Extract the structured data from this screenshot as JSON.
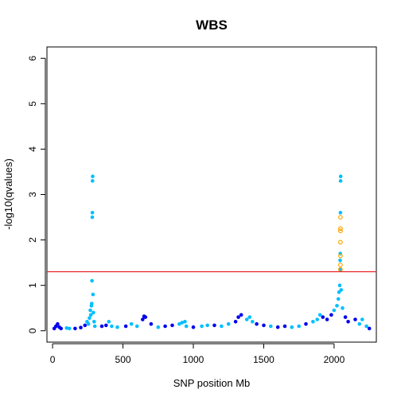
{
  "chart_data": {
    "type": "scatter",
    "title": "WBS",
    "xlabel": "SNP position Mb",
    "ylabel": "-log10(qvalues)",
    "xlim": [
      -40,
      2300
    ],
    "ylim": [
      -0.25,
      6.25
    ],
    "xticks": [
      0,
      500,
      1000,
      1500,
      2000
    ],
    "yticks": [
      0,
      1,
      2,
      3,
      4,
      5,
      6
    ],
    "grid": false,
    "threshold": {
      "y": 1.3,
      "color": "#e8222a"
    },
    "colors": {
      "dark": "#0000ee",
      "light": "#00bfff",
      "highlight": "#ffa500"
    },
    "series": [
      {
        "style": "filled-alternating",
        "points": [
          [
            12,
            0.05
          ],
          [
            24,
            0.1
          ],
          [
            36,
            0.15
          ],
          [
            48,
            0.08
          ],
          [
            60,
            0.05
          ],
          [
            100,
            0.06
          ],
          [
            120,
            0.05
          ],
          [
            160,
            0.05
          ],
          [
            200,
            0.07
          ],
          [
            230,
            0.12
          ],
          [
            245,
            0.2
          ],
          [
            255,
            0.15
          ],
          [
            262,
            0.28
          ],
          [
            268,
            0.45
          ],
          [
            272,
            0.35
          ],
          [
            276,
            0.55
          ],
          [
            278,
            0.6
          ],
          [
            280,
            1.1
          ],
          [
            282,
            2.5
          ],
          [
            283,
            2.6
          ],
          [
            284,
            3.3
          ],
          [
            285,
            3.4
          ],
          [
            287,
            0.8
          ],
          [
            290,
            0.4
          ],
          [
            295,
            0.2
          ],
          [
            300,
            0.1
          ],
          [
            350,
            0.1
          ],
          [
            380,
            0.12
          ],
          [
            400,
            0.2
          ],
          [
            420,
            0.1
          ],
          [
            460,
            0.08
          ],
          [
            520,
            0.1
          ],
          [
            560,
            0.15
          ],
          [
            600,
            0.1
          ],
          [
            640,
            0.25
          ],
          [
            650,
            0.32
          ],
          [
            660,
            0.3
          ],
          [
            700,
            0.15
          ],
          [
            750,
            0.08
          ],
          [
            800,
            0.1
          ],
          [
            850,
            0.12
          ],
          [
            900,
            0.15
          ],
          [
            920,
            0.18
          ],
          [
            940,
            0.2
          ],
          [
            950,
            0.1
          ],
          [
            1000,
            0.08
          ],
          [
            1060,
            0.1
          ],
          [
            1100,
            0.12
          ],
          [
            1150,
            0.12
          ],
          [
            1200,
            0.1
          ],
          [
            1250,
            0.15
          ],
          [
            1300,
            0.2
          ],
          [
            1320,
            0.3
          ],
          [
            1340,
            0.35
          ],
          [
            1380,
            0.25
          ],
          [
            1400,
            0.3
          ],
          [
            1420,
            0.2
          ],
          [
            1450,
            0.15
          ],
          [
            1500,
            0.12
          ],
          [
            1550,
            0.1
          ],
          [
            1600,
            0.08
          ],
          [
            1650,
            0.1
          ],
          [
            1700,
            0.08
          ],
          [
            1750,
            0.1
          ],
          [
            1800,
            0.15
          ],
          [
            1850,
            0.2
          ],
          [
            1880,
            0.25
          ],
          [
            1900,
            0.35
          ],
          [
            1920,
            0.3
          ],
          [
            1950,
            0.25
          ],
          [
            1980,
            0.35
          ],
          [
            2000,
            0.45
          ],
          [
            2020,
            0.55
          ],
          [
            2030,
            0.7
          ],
          [
            2035,
            0.85
          ],
          [
            2040,
            1.0
          ],
          [
            2042,
            1.35
          ],
          [
            2043,
            1.55
          ],
          [
            2044,
            1.7
          ],
          [
            2045,
            2.6
          ],
          [
            2046,
            3.3
          ],
          [
            2047,
            3.4
          ],
          [
            2050,
            0.9
          ],
          [
            2060,
            0.5
          ],
          [
            2080,
            0.3
          ],
          [
            2100,
            0.2
          ],
          [
            2150,
            0.25
          ],
          [
            2180,
            0.15
          ],
          [
            2200,
            0.25
          ],
          [
            2230,
            0.1
          ],
          [
            2250,
            0.05
          ]
        ]
      },
      {
        "style": "hollow",
        "points": [
          [
            2045,
            2.5
          ],
          [
            2045,
            2.25
          ],
          [
            2045,
            2.2
          ],
          [
            2045,
            1.95
          ],
          [
            2045,
            1.65
          ],
          [
            2045,
            1.45
          ],
          [
            2045,
            1.35
          ]
        ]
      }
    ]
  }
}
